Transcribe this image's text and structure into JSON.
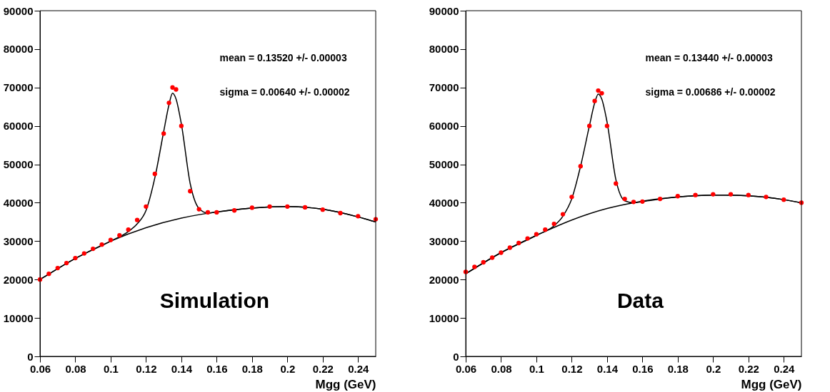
{
  "chart_data": [
    {
      "type": "scatter",
      "xlabel": "Mgg (GeV)",
      "xlim": [
        0.06,
        0.25
      ],
      "ylim": [
        0,
        90000
      ],
      "xticks": [
        0.06,
        0.08,
        0.1,
        0.12,
        0.14,
        0.16,
        0.18,
        0.2,
        0.22,
        0.24
      ],
      "yticks": [
        0,
        10000,
        20000,
        30000,
        40000,
        50000,
        60000,
        70000,
        80000,
        90000
      ],
      "grid": false,
      "annotations": [
        "mean = 0.13520 +/- 0.00003",
        "sigma = 0.00640 +/- 0.00002",
        "Simulation"
      ],
      "series": [
        {
          "color": "#ff0000",
          "marker": "circle",
          "x": [
            0.06,
            0.065,
            0.07,
            0.075,
            0.08,
            0.085,
            0.09,
            0.095,
            0.1,
            0.105,
            0.11,
            0.115,
            0.12,
            0.125,
            0.13,
            0.133,
            0.135,
            0.137,
            0.14,
            0.145,
            0.15,
            0.155,
            0.16,
            0.17,
            0.18,
            0.19,
            0.2,
            0.21,
            0.22,
            0.23,
            0.24,
            0.25
          ],
          "values": [
            20000,
            21500,
            23000,
            24300,
            25600,
            26800,
            28000,
            29100,
            30300,
            31500,
            33000,
            35500,
            39000,
            47500,
            58000,
            66000,
            70000,
            69500,
            60000,
            43000,
            38300,
            37500,
            37500,
            38000,
            38700,
            39000,
            39000,
            38800,
            38200,
            37300,
            36500,
            35700
          ]
        },
        {
          "type": "line",
          "marker": "none",
          "color": "#000000",
          "x": [
            0.06,
            0.08,
            0.1,
            0.11,
            0.115,
            0.12,
            0.125,
            0.13,
            0.133,
            0.135,
            0.137,
            0.14,
            0.145,
            0.15,
            0.155,
            0.16,
            0.18,
            0.2,
            0.22,
            0.24,
            0.25
          ],
          "values": [
            20000,
            25500,
            30000,
            32500,
            34500,
            38000,
            46500,
            58500,
            65500,
            68500,
            67000,
            60500,
            45000,
            38500,
            37300,
            37600,
            38600,
            39000,
            38300,
            36300,
            35000
          ]
        },
        {
          "type": "line",
          "marker": "none",
          "color": "#000000",
          "x": [
            0.06,
            0.08,
            0.1,
            0.12,
            0.14,
            0.16,
            0.18,
            0.2,
            0.22,
            0.24,
            0.25
          ],
          "values": [
            20000,
            25500,
            30000,
            33500,
            36000,
            37600,
            38600,
            39000,
            38300,
            36300,
            35000
          ]
        }
      ]
    },
    {
      "type": "scatter",
      "xlabel": "Mgg (GeV)",
      "xlim": [
        0.06,
        0.25
      ],
      "ylim": [
        0,
        90000
      ],
      "xticks": [
        0.06,
        0.08,
        0.1,
        0.12,
        0.14,
        0.16,
        0.18,
        0.2,
        0.22,
        0.24
      ],
      "yticks": [
        0,
        10000,
        20000,
        30000,
        40000,
        50000,
        60000,
        70000,
        80000,
        90000
      ],
      "grid": false,
      "annotations": [
        "mean = 0.13440 +/- 0.00003",
        "sigma = 0.00686 +/- 0.00002",
        "Data"
      ],
      "series": [
        {
          "color": "#ff0000",
          "marker": "circle",
          "x": [
            0.06,
            0.065,
            0.07,
            0.075,
            0.08,
            0.085,
            0.09,
            0.095,
            0.1,
            0.105,
            0.11,
            0.115,
            0.12,
            0.125,
            0.13,
            0.133,
            0.135,
            0.137,
            0.14,
            0.145,
            0.15,
            0.155,
            0.16,
            0.17,
            0.18,
            0.19,
            0.2,
            0.21,
            0.22,
            0.23,
            0.24,
            0.25
          ],
          "values": [
            22000,
            23300,
            24500,
            25700,
            27000,
            28300,
            29500,
            30700,
            31800,
            33000,
            34500,
            37000,
            41500,
            49500,
            60000,
            66500,
            69200,
            68500,
            60000,
            45000,
            41000,
            40200,
            40300,
            41000,
            41700,
            42000,
            42200,
            42200,
            42000,
            41500,
            40800,
            40000
          ]
        },
        {
          "type": "line",
          "marker": "none",
          "color": "#000000",
          "x": [
            0.06,
            0.08,
            0.1,
            0.11,
            0.115,
            0.12,
            0.125,
            0.13,
            0.133,
            0.135,
            0.137,
            0.14,
            0.145,
            0.15,
            0.155,
            0.16,
            0.18,
            0.2,
            0.22,
            0.24,
            0.25
          ],
          "values": [
            21500,
            27000,
            31500,
            34000,
            36500,
            41000,
            49500,
            60000,
            66000,
            68300,
            67000,
            61000,
            46000,
            40500,
            40000,
            40300,
            41500,
            42000,
            41800,
            40800,
            40000
          ]
        },
        {
          "type": "line",
          "marker": "none",
          "color": "#000000",
          "x": [
            0.06,
            0.08,
            0.1,
            0.12,
            0.14,
            0.155,
            0.18,
            0.2,
            0.22,
            0.24,
            0.25
          ],
          "values": [
            21500,
            27000,
            31500,
            35500,
            38500,
            40000,
            41500,
            42000,
            41800,
            40800,
            40000
          ]
        }
      ]
    }
  ]
}
